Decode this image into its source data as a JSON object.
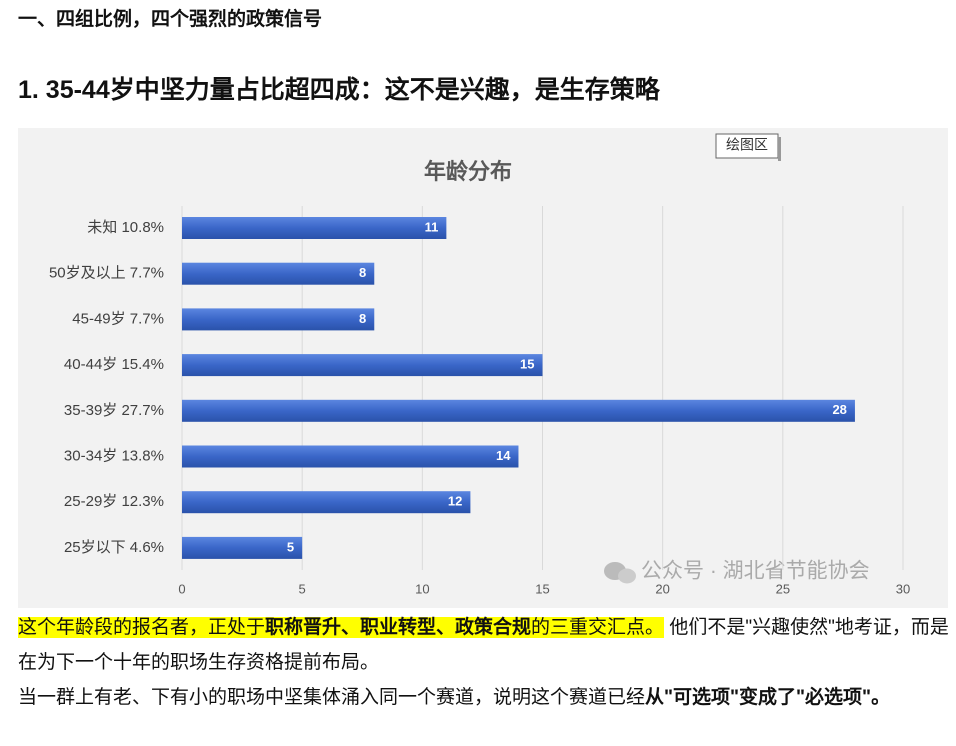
{
  "section_heading": "一、四组比例，四个强烈的政策信号",
  "heading": "1. 35-44岁中坚力量占比超四成：这不是兴趣，是生存策略",
  "plot_area_label": "绘图区",
  "chart_data": {
    "type": "bar",
    "orientation": "horizontal",
    "title": "年龄分布",
    "categories": [
      "未知 10.8%",
      "50岁及以上 7.7%",
      "45-49岁 7.7%",
      "40-44岁 15.4%",
      "35-39岁 27.7%",
      "30-34岁 13.8%",
      "25-29岁 12.3%",
      "25岁以下 4.6%"
    ],
    "values": [
      11,
      8,
      8,
      15,
      28,
      14,
      12,
      5
    ],
    "color": "#3a66c8",
    "xlim": [
      0,
      30
    ],
    "xticks": [
      0,
      5,
      10,
      15,
      20,
      25,
      30
    ],
    "grid": true
  },
  "watermark": "公众号 · 湖北省节能协会",
  "paragraphs": [
    [
      "这个年龄段的报名者，正处于",
      "职称晋升、职业转型、政策合规",
      "的三重交汇点。",
      "他们不是\"兴趣使然\"地考证，而是在为下一个十年的职场生存资格提前布局。"
    ],
    [
      "当一群上有老、下有小的职场中坚集体涌入同一个赛道，说明这个赛道已经",
      "从\"可选项\"变成了\"必选项\"",
      "。"
    ]
  ]
}
